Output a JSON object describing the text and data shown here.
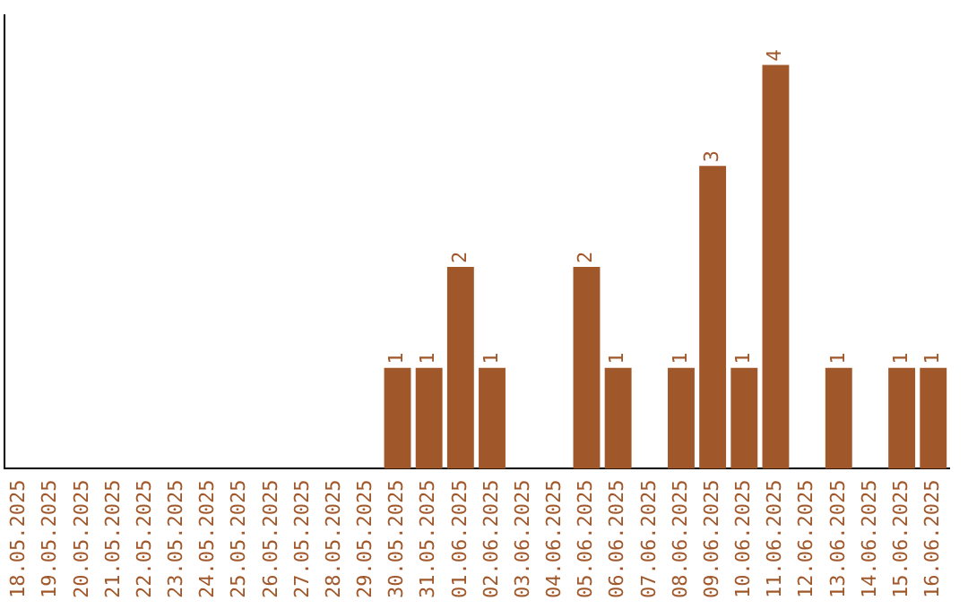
{
  "chart_data": {
    "type": "bar",
    "categories": [
      "18.05.2025",
      "19.05.2025",
      "20.05.2025",
      "21.05.2025",
      "22.05.2025",
      "23.05.2025",
      "24.05.2025",
      "25.05.2025",
      "26.05.2025",
      "27.05.2025",
      "28.05.2025",
      "29.05.2025",
      "30.05.2025",
      "31.05.2025",
      "01.06.2025",
      "02.06.2025",
      "03.06.2025",
      "04.06.2025",
      "05.06.2025",
      "06.06.2025",
      "07.06.2025",
      "08.06.2025",
      "09.06.2025",
      "10.06.2025",
      "11.06.2025",
      "12.06.2025",
      "13.06.2025",
      "14.06.2025",
      "15.06.2025",
      "16.06.2025"
    ],
    "values": [
      null,
      null,
      null,
      null,
      null,
      null,
      null,
      null,
      null,
      null,
      null,
      null,
      1,
      1,
      2,
      1,
      null,
      null,
      2,
      1,
      null,
      1,
      3,
      1,
      4,
      null,
      1,
      null,
      1,
      1
    ],
    "value_labels": [
      null,
      null,
      null,
      null,
      null,
      null,
      null,
      null,
      null,
      null,
      null,
      null,
      "1",
      "1",
      "2",
      "1",
      null,
      null,
      "2",
      "1",
      null,
      "1",
      "3",
      "1",
      "4",
      null,
      "1",
      null,
      "1",
      "1"
    ],
    "color": "#a0572a",
    "grid": false,
    "legend": false,
    "tick_labels": "x"
  }
}
